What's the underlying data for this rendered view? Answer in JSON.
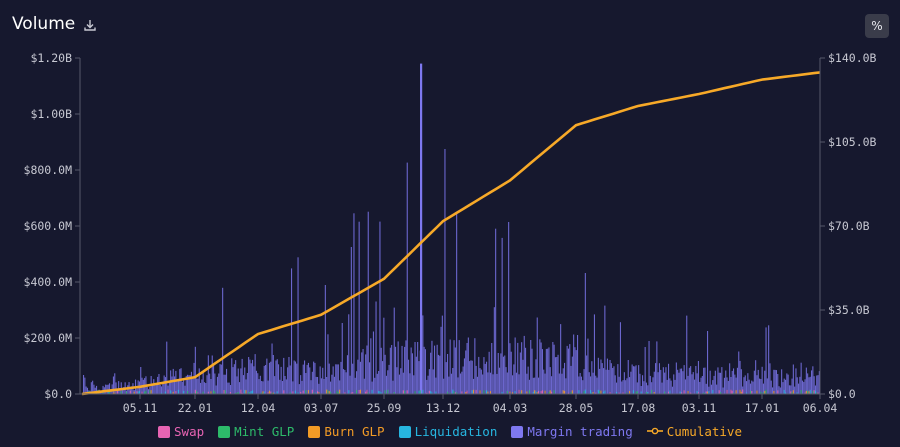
{
  "header": {
    "title": "Volume",
    "percent_button": "%"
  },
  "colors": {
    "background": "#16182e",
    "swap": "#e764b3",
    "mint_glp": "#2dbb6a",
    "burn_glp": "#f29b26",
    "liquidation": "#27b6e0",
    "margin_trading": "#7e78f0",
    "cumulative": "#f7a928"
  },
  "chart_data": {
    "type": "bar",
    "title": "Volume",
    "x_ticks": [
      "05.11",
      "22.01",
      "12.04",
      "03.07",
      "25.09",
      "13.12",
      "04.03",
      "28.05",
      "17.08",
      "03.11",
      "17.01",
      "06.04"
    ],
    "y_left_ticks": [
      "$0.0",
      "$200.0M",
      "$400.0M",
      "$600.0M",
      "$800.0M",
      "$1.00B",
      "$1.20B"
    ],
    "y_right_ticks": [
      "$0.0",
      "$35.0B",
      "$70.0B",
      "$105.0B",
      "$140.0B"
    ],
    "ylim_left": [
      0,
      1.2
    ],
    "ylim_right": [
      0,
      140
    ],
    "left_unit": "B (billions USD)",
    "right_unit": "B (billions USD)",
    "grid": false,
    "legend_position": "bottom",
    "stacked": true,
    "series": [
      {
        "name": "Swap",
        "color": "#e764b3"
      },
      {
        "name": "Mint GLP",
        "color": "#2dbb6a"
      },
      {
        "name": "Burn GLP",
        "color": "#f29b26"
      },
      {
        "name": "Liquidation",
        "color": "#27b6e0"
      },
      {
        "name": "Margin trading",
        "color": "#7e78f0"
      }
    ],
    "margin_trading_envelope": {
      "x": [
        "05.11",
        "22.01",
        "12.04",
        "03.07",
        "25.09",
        "13.12",
        "04.03",
        "28.05",
        "17.08",
        "03.11",
        "17.01",
        "06.04"
      ],
      "typical": [
        0.04,
        0.08,
        0.1,
        0.09,
        0.13,
        0.14,
        0.15,
        0.12,
        0.08,
        0.07,
        0.06,
        0.07
      ],
      "peaks": [
        0.1,
        0.38,
        0.4,
        0.55,
        0.78,
        1.18,
        0.6,
        0.48,
        0.22,
        0.35,
        0.3,
        0.22
      ]
    },
    "cumulative": {
      "name": "Cumulative",
      "axis": "right",
      "x": [
        "start",
        "05.11",
        "22.01",
        "12.04",
        "03.07",
        "25.09",
        "13.12",
        "04.03",
        "28.05",
        "17.08",
        "03.11",
        "17.01",
        "06.04"
      ],
      "values": [
        0,
        3,
        7,
        25,
        33,
        48,
        72,
        89,
        112,
        120,
        125,
        131,
        134
      ]
    }
  }
}
